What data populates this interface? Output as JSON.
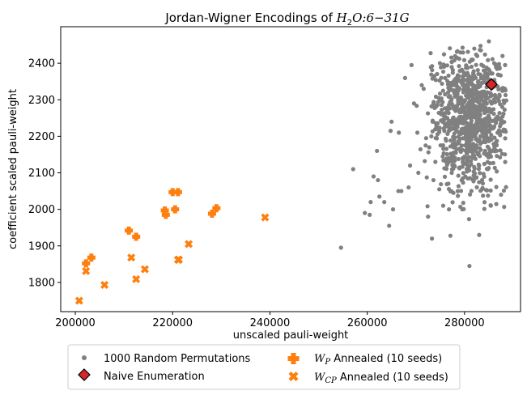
{
  "chart_data": {
    "type": "scatter",
    "title": "Jordan-Wigner Encodings of H₂O:6−31G",
    "title_main": "Jordan-Wigner Encodings of ",
    "title_math": "H",
    "title_math_sub": "2",
    "title_math_rest": "O:6−31G",
    "xlabel": "unscaled pauli-weight",
    "ylabel": "coefficient scaled pauli-weight",
    "xlim": [
      197000,
      291500
    ],
    "ylim": [
      1720,
      2500
    ],
    "xticks": [
      200000,
      220000,
      240000,
      260000,
      280000
    ],
    "xtick_labels": [
      "200000",
      "220000",
      "240000",
      "260000",
      "280000"
    ],
    "yticks": [
      1800,
      1900,
      2000,
      2100,
      2200,
      2300,
      2400
    ],
    "ytick_labels": [
      "1800",
      "1900",
      "2000",
      "2100",
      "2200",
      "2300",
      "2400"
    ],
    "grid": false,
    "legend_position": "below-center",
    "random_cluster": {
      "name": "1000 Random Permutations",
      "count": 1000,
      "color": "#808080",
      "center_x": 281000,
      "center_y": 2250,
      "sd_x": 3800,
      "sd_y": 95
    },
    "series": [
      {
        "name": "1000 Random Permutations",
        "marker": "circle",
        "color": "#808080",
        "x": [
          254600,
          257100,
          259500,
          260500,
          261300,
          262000,
          262500,
          263500,
          264500,
          265300,
          265000,
          266500,
          267000,
          268500,
          269600,
          270500,
          271600,
          272000,
          272500,
          273300,
          274000,
          274800,
          275600,
          276500,
          277000,
          278000,
          278800,
          279600,
          280400,
          281000,
          281800,
          282600,
          283500,
          284300,
          285000,
          285700,
          286500,
          287200,
          287800,
          288300,
          279400,
          280600,
          282000,
          283200,
          284800,
          286100,
          287500,
          275200,
          276800,
          281800,
          283000,
          271200,
          270300,
          268800,
          266400,
          264800,
          262200,
          260700,
          269100,
          273600,
          277800,
          281300,
          285400
        ],
        "y": [
          1895,
          2110,
          1990,
          1985,
          2090,
          2160,
          2035,
          2020,
          1955,
          2000,
          2240,
          2210,
          2050,
          2060,
          2290,
          2100,
          2330,
          2175,
          1980,
          1920,
          2130,
          2055,
          2010,
          2270,
          2310,
          2180,
          2365,
          2140,
          2250,
          1845,
          2200,
          2420,
          2300,
          2380,
          2460,
          2160,
          2250,
          2310,
          2420,
          2330,
          2080,
          2340,
          2440,
          2270,
          2110,
          2400,
          2040,
          2360,
          2000,
          2370,
          1930,
          2340,
          2210,
          2120,
          2050,
          2215,
          2080,
          2020,
          2395,
          2080,
          2280,
          2190,
          2010
        ]
      },
      {
        "name": "Naive Enumeration",
        "marker": "diamond",
        "color": "#d62728",
        "x": [
          285500
        ],
        "y": [
          2342
        ]
      },
      {
        "name": "W_P Annealed (10 seeds)",
        "marker": "plus",
        "color": "#ff7f0e",
        "x": [
          202200,
          203300,
          211000,
          212500,
          218400,
          220000,
          221100,
          220500,
          228100,
          229000
        ],
        "y": [
          1852,
          1868,
          1942,
          1925,
          1997,
          2047,
          2047,
          2000,
          1988,
          2003
        ],
        "extra_x": [
          218600
        ],
        "extra_y": [
          1985
        ]
      },
      {
        "name": "W_CP Annealed (10 seeds)",
        "marker": "x",
        "color": "#ff7f0e",
        "x": [
          200800,
          202200,
          206000,
          211500,
          212500,
          214300,
          221300,
          223300,
          239000,
          221100
        ],
        "y": [
          1750,
          1831,
          1793,
          1868,
          1809,
          1836,
          1862,
          1905,
          1978,
          1862
        ]
      }
    ],
    "legend": [
      {
        "label": "1000 Random Permutations",
        "marker": "circle",
        "color": "#808080"
      },
      {
        "label": "Naive Enumeration",
        "marker": "diamond",
        "color": "#d62728"
      },
      {
        "label_main": "W",
        "label_sub": "P",
        "label_rest": " Annealed (10 seeds)",
        "marker": "plus",
        "color": "#ff7f0e"
      },
      {
        "label_main": "W",
        "label_sub": "CP",
        "label_rest": " Annealed (10 seeds)",
        "marker": "x",
        "color": "#ff7f0e"
      }
    ]
  }
}
